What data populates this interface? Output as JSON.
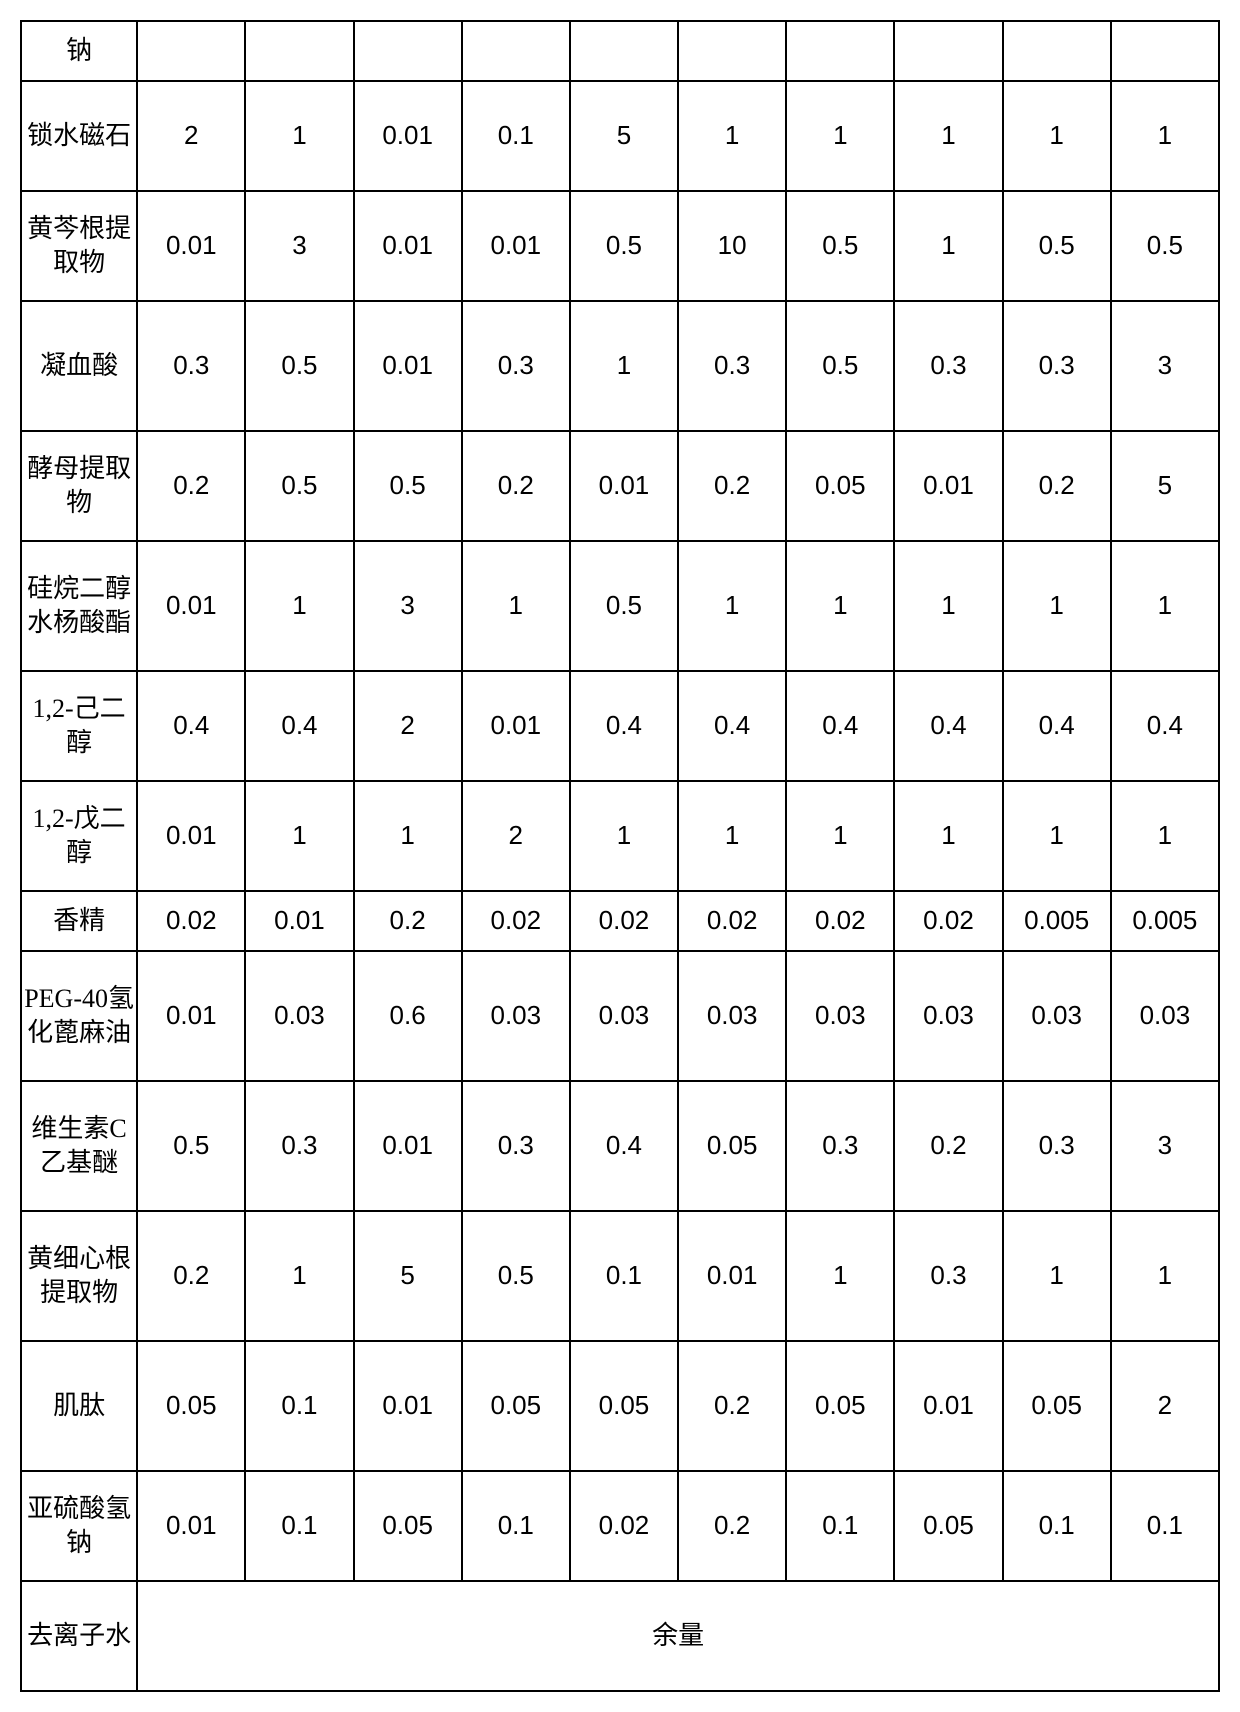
{
  "table": {
    "columns": 11,
    "label_col_width": 116,
    "value_col_width": 108,
    "border_color": "#000000",
    "background_color": "#ffffff",
    "font_size": 26,
    "rows": [
      {
        "cls": "r-na",
        "label": "钠",
        "cells": [
          "",
          "",
          "",
          "",
          "",
          "",
          "",
          "",
          "",
          ""
        ]
      },
      {
        "cls": "med",
        "label": "锁水磁石",
        "cells": [
          "2",
          "1",
          "0.01",
          "0.1",
          "5",
          "1",
          "1",
          "1",
          "1",
          "1"
        ]
      },
      {
        "cls": "med",
        "label": "黄芩根提取物",
        "cells": [
          "0.01",
          "3",
          "0.01",
          "0.01",
          "0.5",
          "10",
          "0.5",
          "1",
          "0.5",
          "0.5"
        ]
      },
      {
        "cls": "tall",
        "label": "凝血酸",
        "cells": [
          "0.3",
          "0.5",
          "0.01",
          "0.3",
          "1",
          "0.3",
          "0.5",
          "0.3",
          "0.3",
          "3"
        ]
      },
      {
        "cls": "med",
        "label": "酵母提取物",
        "cells": [
          "0.2",
          "0.5",
          "0.5",
          "0.2",
          "0.01",
          "0.2",
          "0.05",
          "0.01",
          "0.2",
          "5"
        ]
      },
      {
        "cls": "tall",
        "label": "硅烷二醇水杨酸酯",
        "cells": [
          "0.01",
          "1",
          "3",
          "1",
          "0.5",
          "1",
          "1",
          "1",
          "1",
          "1"
        ]
      },
      {
        "cls": "med",
        "label": "1,2-己二醇",
        "cells": [
          "0.4",
          "0.4",
          "2",
          "0.01",
          "0.4",
          "0.4",
          "0.4",
          "0.4",
          "0.4",
          "0.4"
        ]
      },
      {
        "cls": "med",
        "label": "1,2-戊二醇",
        "cells": [
          "0.01",
          "1",
          "1",
          "2",
          "1",
          "1",
          "1",
          "1",
          "1",
          "1"
        ]
      },
      {
        "cls": "short",
        "label": "香精",
        "cells": [
          "0.02",
          "0.01",
          "0.2",
          "0.02",
          "0.02",
          "0.02",
          "0.02",
          "0.02",
          "0.005",
          "0.005"
        ]
      },
      {
        "cls": "tall",
        "label": "PEG-40氢化蓖麻油",
        "cells": [
          "0.01",
          "0.03",
          "0.6",
          "0.03",
          "0.03",
          "0.03",
          "0.03",
          "0.03",
          "0.03",
          "0.03"
        ]
      },
      {
        "cls": "tall",
        "label": "维生素C乙基醚",
        "cells": [
          "0.5",
          "0.3",
          "0.01",
          "0.3",
          "0.4",
          "0.05",
          "0.3",
          "0.2",
          "0.3",
          "3"
        ]
      },
      {
        "cls": "tall",
        "label": "黄细心根提取物",
        "cells": [
          "0.2",
          "1",
          "5",
          "0.5",
          "0.1",
          "0.01",
          "1",
          "0.3",
          "1",
          "1"
        ]
      },
      {
        "cls": "tall",
        "label": "肌肽",
        "cells": [
          "0.05",
          "0.1",
          "0.01",
          "0.05",
          "0.05",
          "0.2",
          "0.05",
          "0.01",
          "0.05",
          "2"
        ]
      },
      {
        "cls": "med",
        "label": "亚硫酸氢钠",
        "cells": [
          "0.01",
          "0.1",
          "0.05",
          "0.1",
          "0.02",
          "0.2",
          "0.1",
          "0.05",
          "0.1",
          "0.1"
        ]
      }
    ],
    "last_row": {
      "cls": "med",
      "label": "去离子水",
      "merged_text": "余量"
    }
  }
}
